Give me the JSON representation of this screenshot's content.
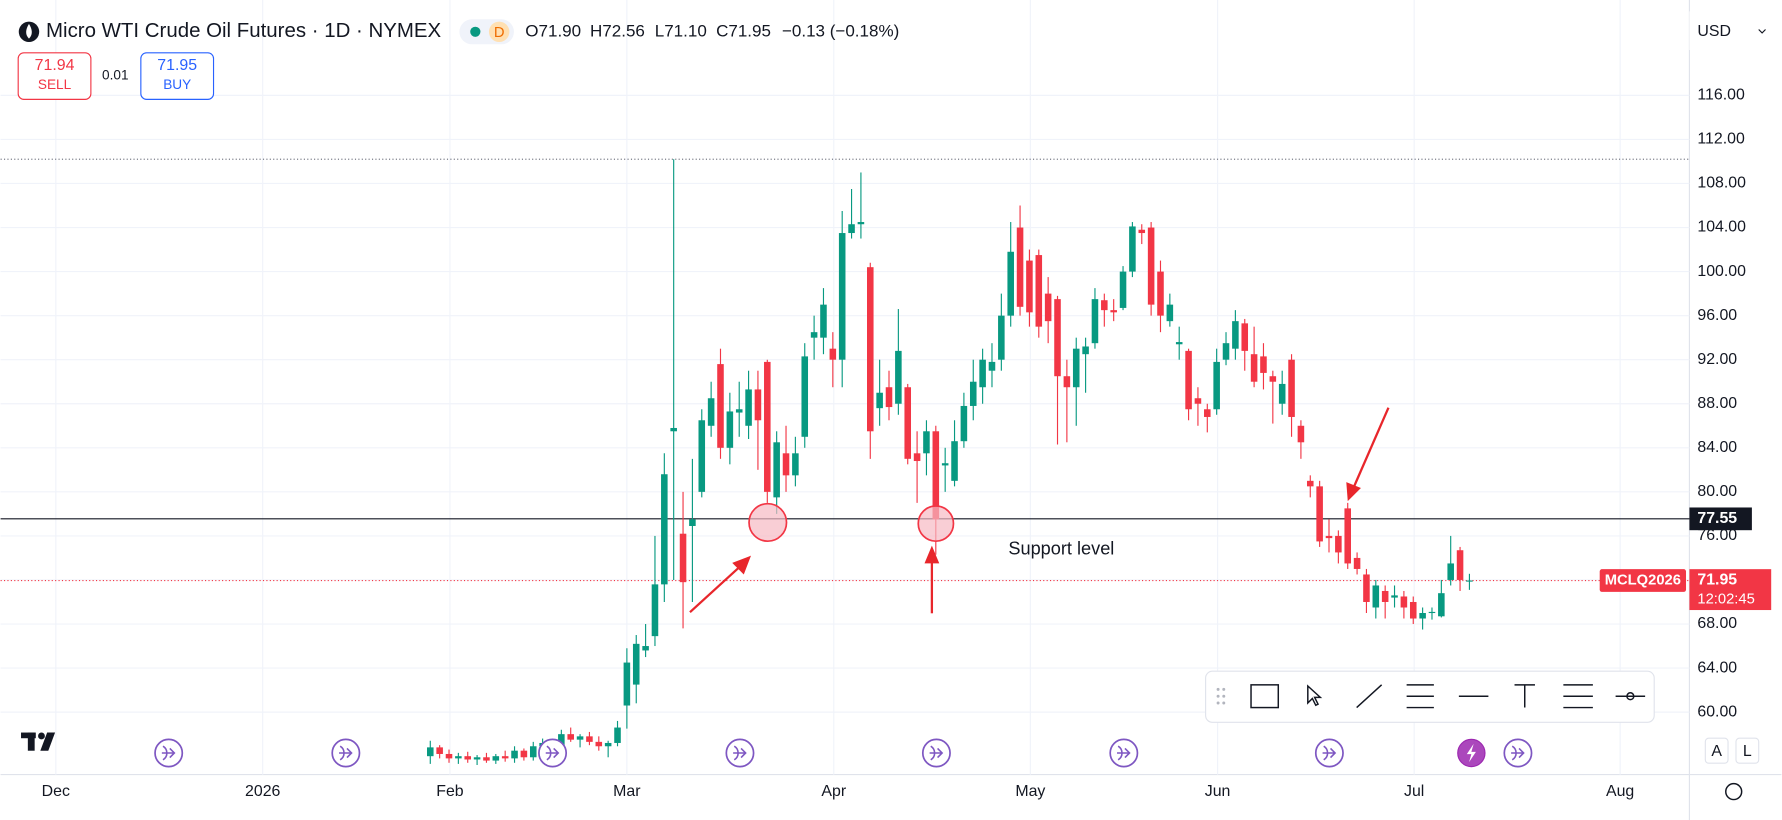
{
  "header": {
    "symbol": "Micro WTI Crude Oil Futures · 1D · NYMEX",
    "badge": "D",
    "open": "O71.90",
    "high": "H72.56",
    "low": "L71.10",
    "close": "C71.95",
    "change": "−0.13 (−0.18%)"
  },
  "trade": {
    "sell_price": "71.94",
    "sell": "SELL",
    "spread": "0.01",
    "buy_price": "71.95",
    "buy": "BUY"
  },
  "currency": "USD",
  "buttons": [
    "A",
    "L"
  ],
  "chart_data": {
    "type": "candlestick",
    "up_color": "#089981",
    "down_color": "#f23645",
    "grid": true,
    "x": [
      0,
      1,
      2,
      3,
      4,
      5,
      6,
      7,
      8,
      9,
      10,
      11,
      12,
      13,
      14,
      15,
      16,
      17,
      18,
      19,
      20,
      21,
      22,
      23,
      24,
      25,
      26,
      27,
      28,
      29,
      30,
      31,
      32,
      33,
      34,
      35,
      36,
      37,
      38,
      39,
      40,
      41,
      42,
      43,
      44,
      45,
      46,
      47,
      48,
      49,
      50,
      51,
      52,
      53,
      54,
      55,
      56,
      57,
      58,
      59,
      60,
      61,
      62,
      63,
      64,
      65,
      66,
      67,
      68,
      69,
      70,
      71,
      72,
      73,
      74,
      75,
      76,
      77,
      78,
      79,
      80,
      81,
      82,
      83,
      84,
      85,
      86,
      87,
      88,
      89,
      90,
      91,
      92,
      93,
      94,
      95,
      96,
      97,
      98,
      99,
      100,
      101,
      102,
      103,
      104,
      105,
      106,
      107,
      108,
      109,
      110,
      111
    ],
    "open": [
      56.0,
      56.8,
      56.2,
      55.8,
      56.0,
      55.7,
      55.9,
      55.6,
      56.0,
      55.8,
      56.5,
      55.9,
      56.9,
      57.2,
      55.8,
      58.0,
      57.5,
      57.8,
      57.3,
      56.9,
      57.2,
      60.6,
      62.5,
      65.6,
      66.9,
      71.6,
      85.5,
      76.2,
      76.9,
      80.0,
      86.0,
      91.6,
      84.0,
      87.2,
      86.0,
      89.3,
      91.8,
      79.5,
      83.5,
      81.5,
      85.0,
      94.0,
      94.0,
      93.0,
      92.0,
      103.5,
      104.3,
      100.4,
      87.6,
      89.5,
      88.0,
      89.5,
      83.5,
      83.5,
      85.5,
      82.4,
      81.0,
      84.6,
      87.8,
      89.5,
      91.0,
      92.0,
      96.0,
      104.0,
      101.0,
      101.5,
      98.0,
      97.5,
      90.5,
      89.5,
      92.5,
      93.5,
      97.4,
      96.5,
      96.7,
      100.0,
      103.8,
      104.0,
      100.0,
      95.5,
      93.4,
      92.8,
      88.5,
      87.5,
      87.5,
      92.0,
      93.0,
      95.3,
      92.5,
      92.3,
      90.5,
      88.0,
      92.0,
      86.0,
      81.0,
      80.5,
      76.0,
      76.0,
      78.5,
      74.0,
      72.5,
      69.5,
      71.0,
      70.4,
      70.5,
      70.0,
      68.5,
      69.0,
      68.7,
      72.0,
      74.7,
      71.9
    ],
    "high": [
      57.4,
      57.0,
      56.6,
      56.3,
      56.4,
      56.1,
      56.3,
      56.2,
      56.5,
      56.9,
      56.7,
      57.3,
      57.6,
      57.5,
      58.4,
      58.6,
      58.0,
      58.2,
      57.8,
      57.4,
      59.2,
      65.8,
      67.0,
      68.0,
      76.0,
      83.5,
      110.2,
      80.0,
      83.0,
      87.5,
      90.0,
      93.0,
      89.0,
      90.0,
      91.0,
      91.0,
      92.0,
      85.5,
      86.0,
      85.0,
      93.5,
      96.0,
      98.5,
      94.5,
      105.5,
      107.5,
      109.0,
      100.8,
      92.0,
      91.0,
      96.6,
      89.8,
      85.5,
      86.5,
      86.0,
      84.0,
      86.5,
      89.0,
      92.0,
      93.0,
      93.5,
      98.0,
      104.5,
      106.0,
      102.0,
      102.0,
      99.5,
      97.8,
      92.0,
      94.0,
      94.0,
      98.5,
      98.0,
      97.5,
      100.5,
      104.5,
      104.3,
      104.5,
      101.0,
      98.0,
      95.0,
      93.0,
      89.5,
      88.0,
      93.0,
      94.5,
      96.5,
      95.7,
      95.0,
      93.5,
      91.0,
      91.0,
      92.5,
      86.5,
      81.5,
      81.0,
      77.5,
      76.5,
      79.0,
      74.5,
      73.0,
      72.0,
      71.5,
      71.5,
      71.0,
      70.5,
      69.5,
      69.5,
      72.0,
      76.0,
      75.0,
      72.56
    ],
    "low": [
      55.3,
      55.8,
      55.4,
      55.3,
      55.4,
      55.2,
      55.4,
      55.3,
      55.5,
      55.4,
      55.6,
      55.6,
      56.3,
      55.2,
      55.5,
      57.3,
      56.8,
      57.0,
      56.5,
      55.9,
      56.9,
      58.5,
      60.8,
      65.0,
      66.0,
      70.0,
      72.0,
      67.6,
      70.0,
      79.5,
      85.0,
      83.0,
      82.5,
      85.0,
      84.8,
      82.0,
      79.0,
      78.0,
      80.0,
      80.5,
      84.0,
      92.0,
      92.5,
      89.5,
      89.5,
      103.0,
      103.0,
      83.0,
      86.0,
      86.5,
      87.0,
      82.5,
      79.0,
      81.5,
      74.3,
      80.0,
      80.5,
      84.0,
      86.5,
      88.0,
      89.5,
      91.0,
      95.0,
      96.0,
      95.0,
      94.0,
      93.5,
      84.3,
      84.5,
      86.0,
      89.0,
      93.0,
      95.0,
      95.5,
      96.5,
      99.5,
      102.5,
      96.0,
      94.5,
      95.0,
      92.0,
      86.5,
      86.0,
      85.4,
      87.0,
      91.5,
      92.0,
      91.0,
      89.5,
      89.3,
      86.2,
      87.0,
      85.0,
      83.0,
      79.5,
      75.0,
      74.5,
      73.5,
      73.0,
      72.5,
      69.0,
      68.5,
      68.5,
      69.5,
      68.5,
      68.0,
      67.5,
      68.4,
      68.6,
      71.5,
      71.0,
      71.1
    ],
    "close": [
      56.8,
      56.2,
      55.8,
      56.0,
      55.7,
      55.9,
      55.6,
      56.0,
      55.8,
      56.5,
      55.9,
      56.9,
      57.2,
      55.8,
      58.0,
      57.5,
      57.8,
      57.3,
      56.9,
      57.2,
      58.6,
      64.5,
      66.2,
      66.0,
      71.6,
      81.6,
      85.8,
      71.8,
      77.5,
      86.5,
      88.5,
      84.0,
      87.3,
      87.5,
      89.3,
      86.5,
      80.0,
      84.5,
      81.5,
      83.5,
      92.3,
      94.5,
      97.0,
      92.0,
      103.5,
      104.3,
      104.5,
      85.5,
      89.0,
      87.7,
      92.8,
      83.0,
      82.8,
      85.5,
      77.5,
      82.6,
      84.6,
      87.8,
      90.0,
      92.0,
      91.8,
      96.0,
      101.8,
      96.8,
      96.3,
      95.0,
      95.5,
      90.5,
      89.5,
      93.0,
      93.2,
      97.5,
      96.5,
      96.3,
      100.0,
      104.1,
      103.5,
      97.0,
      96.0,
      97.0,
      93.6,
      87.5,
      88.0,
      86.8,
      91.8,
      93.5,
      95.5,
      92.8,
      90.0,
      90.8,
      90.0,
      89.8,
      86.8,
      84.5,
      80.5,
      75.5,
      75.8,
      74.5,
      73.5,
      73.0,
      70.0,
      71.5,
      70.0,
      70.6,
      69.5,
      68.5,
      69.0,
      69.1,
      70.8,
      73.5,
      72.0,
      71.95
    ],
    "xlim": [
      -45.9,
      134.5
    ],
    "xticks": [
      {
        "value": -40.0,
        "label": "Dec"
      },
      {
        "value": -17.9,
        "label": "2026"
      },
      {
        "value": 2.1,
        "label": "Feb"
      },
      {
        "value": 21.0,
        "label": "Mar"
      },
      {
        "value": 43.1,
        "label": "Apr"
      },
      {
        "value": 64.1,
        "label": "May"
      },
      {
        "value": 84.1,
        "label": "Jun"
      },
      {
        "value": 105.1,
        "label": "Jul"
      },
      {
        "value": 127.1,
        "label": "Aug"
      }
    ],
    "ylim": [
      54.33,
      124.66
    ],
    "yticks": [
      {
        "value": 60,
        "label": "60.00"
      },
      {
        "value": 64,
        "label": "64.00"
      },
      {
        "value": 68,
        "label": "68.00"
      },
      {
        "value": 72,
        "label": "72.00"
      },
      {
        "value": 76,
        "label": "76.00"
      },
      {
        "value": 80,
        "label": "80.00"
      },
      {
        "value": 84,
        "label": "84.00"
      },
      {
        "value": 88,
        "label": "88.00"
      },
      {
        "value": 92,
        "label": "92.00"
      },
      {
        "value": 96,
        "label": "96.00"
      },
      {
        "value": 100,
        "label": "100.00"
      },
      {
        "value": 104,
        "label": "104.00"
      },
      {
        "value": 108,
        "label": "108.00"
      },
      {
        "value": 112,
        "label": "112.00"
      },
      {
        "value": 116,
        "label": "116.00"
      }
    ],
    "support_line": {
      "value": 77.55,
      "label": "77.55",
      "annotation": "Support level"
    },
    "last_price": {
      "value": 71.95,
      "label": "71.95",
      "symbol": "MCLQ2026",
      "countdown": "12:02:45"
    },
    "high_line": 110.2
  }
}
